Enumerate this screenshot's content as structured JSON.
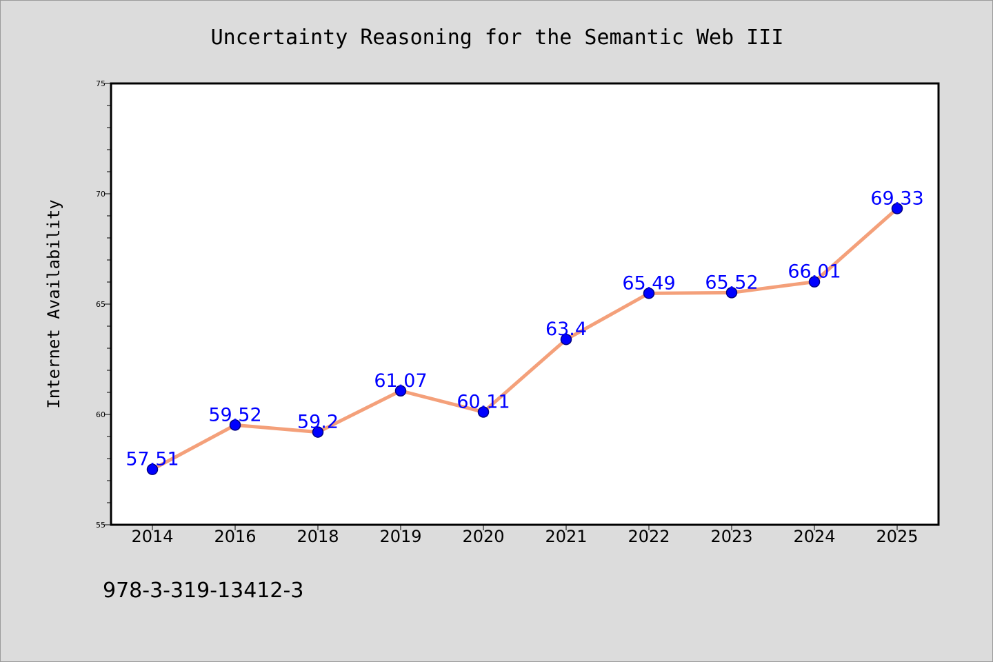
{
  "chart_data": {
    "type": "line",
    "title": "Uncertainty Reasoning for the Semantic Web III",
    "xlabel": "",
    "ylabel": "Internet Availability",
    "categories": [
      "2014",
      "2016",
      "2018",
      "2019",
      "2020",
      "2021",
      "2022",
      "2023",
      "2024",
      "2025"
    ],
    "series": [
      {
        "values": [
          57.51,
          59.52,
          59.2,
          61.07,
          60.11,
          63.4,
          65.49,
          65.52,
          66.01,
          69.33
        ],
        "data_labels": [
          "57.51",
          "59.52",
          "59.2",
          "61.07",
          "60.11",
          "63.4",
          "65.49",
          "65.52",
          "66.01",
          "69.33"
        ]
      }
    ],
    "ylim": [
      55,
      75
    ],
    "yticks": [
      "55",
      "60",
      "65",
      "70",
      "75"
    ],
    "grid": false,
    "legend": "none",
    "colors": {
      "line": "#f4a07a",
      "marker": "#0000ff",
      "marker_edge": "#000080",
      "data_label": "#0000ff",
      "background": "#dcdcdc",
      "plot_background": "#ffffff"
    }
  },
  "footnote": "978-3-319-13412-3"
}
